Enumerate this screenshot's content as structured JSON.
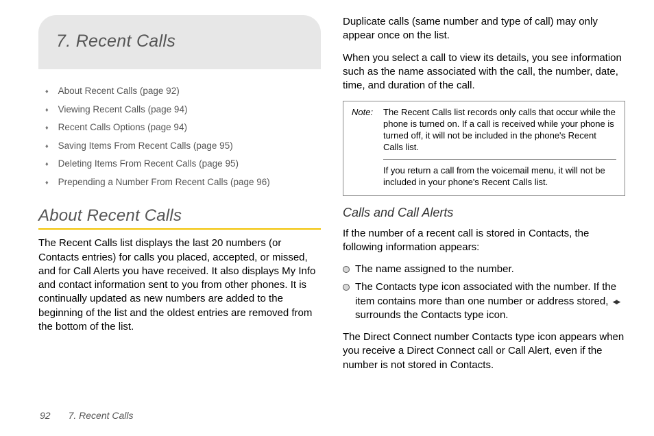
{
  "chapter": {
    "title": "7.   Recent Calls"
  },
  "toc": [
    "About Recent Calls (page 92)",
    "Viewing Recent Calls (page 94)",
    "Recent Calls Options (page 94)",
    "Saving Items From Recent Calls (page 95)",
    "Deleting Items From Recent Calls (page 95)",
    "Prepending a Number From Recent Calls (page 96)"
  ],
  "section1": {
    "heading": "About Recent Calls",
    "para": "The Recent Calls list displays the last 20 numbers (or Contacts entries) for calls you placed, accepted, or missed, and for Call Alerts you have received. It also displays My Info and contact information sent to you from other phones. It is continually updated as new numbers are added to the beginning of the list and the oldest entries are removed from the bottom of the list."
  },
  "col2": {
    "para1": "Duplicate calls (same number and type of call) may only appear once on the list.",
    "para2": "When you select a call to view its details, you see information such as the name associated with the call, the number, date, time, and duration of the call.",
    "note": {
      "label": "Note:",
      "part1": "The Recent Calls list records only calls that occur while the phone is turned on. If a call is received while your phone is turned off, it will not be included in the phone's Recent Calls list.",
      "part2": "If you return a call from the voicemail menu, it will not be included in your phone's Recent Calls list."
    },
    "subsection": {
      "heading": "Calls and Call Alerts",
      "intro": "If the number of a recent call is stored in Contacts, the following information appears:",
      "bullets": {
        "b1": "The name assigned to the number.",
        "b2a": "The Contacts type icon associated with the number. If the item contains more than one number or address stored,",
        "b2b": "surrounds the Contacts type icon."
      },
      "outro": "The Direct Connect number Contacts type icon appears when you receive a Direct Connect call or Call Alert, even if the number is not stored in Contacts."
    }
  },
  "footer": {
    "pagenum": "92",
    "chapter": "7. Recent Calls"
  }
}
